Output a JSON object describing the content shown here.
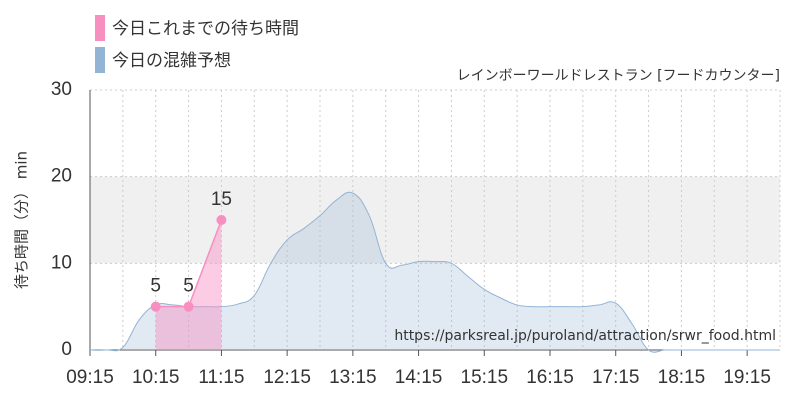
{
  "chart_data": {
    "type": "area",
    "subtitle": "レインボーワールドレストラン [フードカウンター]",
    "y_label": "待ち時間（分） min",
    "watermark": "https://parksreal.jp/puroland/attraction/srwr_food.html",
    "xlim": [
      "09:15",
      "19:45"
    ],
    "xticks": [
      "09:15",
      "10:15",
      "11:15",
      "12:15",
      "13:15",
      "14:15",
      "15:15",
      "16:15",
      "17:15",
      "18:15",
      "19:15"
    ],
    "xminor": [
      "09:45",
      "10:45",
      "11:45",
      "12:45",
      "13:45",
      "14:45",
      "15:45",
      "16:45",
      "17:45",
      "18:45",
      "19:45"
    ],
    "ylim": [
      0,
      30
    ],
    "yticks": [
      0,
      10,
      20,
      30
    ],
    "highlight_band": [
      10,
      20
    ],
    "series": [
      {
        "name": "今日これまでの待ち時間",
        "color": "#f78fc0",
        "kind": "actual",
        "x": [
          "10:15",
          "10:45",
          "11:15"
        ],
        "values": [
          5,
          5,
          15
        ]
      },
      {
        "name": "今日の混雑予想",
        "color": "#93b4d4",
        "kind": "forecast",
        "x": [
          "09:15",
          "09:30",
          "09:45",
          "10:00",
          "10:15",
          "10:30",
          "10:45",
          "11:00",
          "11:15",
          "11:30",
          "11:45",
          "12:00",
          "12:15",
          "12:30",
          "12:45",
          "13:00",
          "13:15",
          "13:30",
          "13:45",
          "14:00",
          "14:15",
          "14:30",
          "14:45",
          "15:00",
          "15:15",
          "15:30",
          "15:45",
          "16:00",
          "16:15",
          "16:30",
          "16:45",
          "17:00",
          "17:15",
          "17:30",
          "17:45",
          "18:00",
          "18:15",
          "18:30",
          "18:45",
          "19:00",
          "19:15",
          "19:30",
          "19:45"
        ],
        "values": [
          0,
          0,
          0.3,
          3.5,
          5.2,
          5.2,
          5,
          5,
          5,
          5.3,
          6.3,
          10,
          12.7,
          14,
          15.5,
          17.3,
          18.1,
          15.5,
          10,
          9.8,
          10.2,
          10.2,
          10,
          8.5,
          7,
          6,
          5.2,
          5,
          5,
          5,
          5,
          5.2,
          5.4,
          3,
          0,
          0,
          0,
          0,
          0,
          0,
          0,
          0,
          0
        ]
      }
    ]
  }
}
